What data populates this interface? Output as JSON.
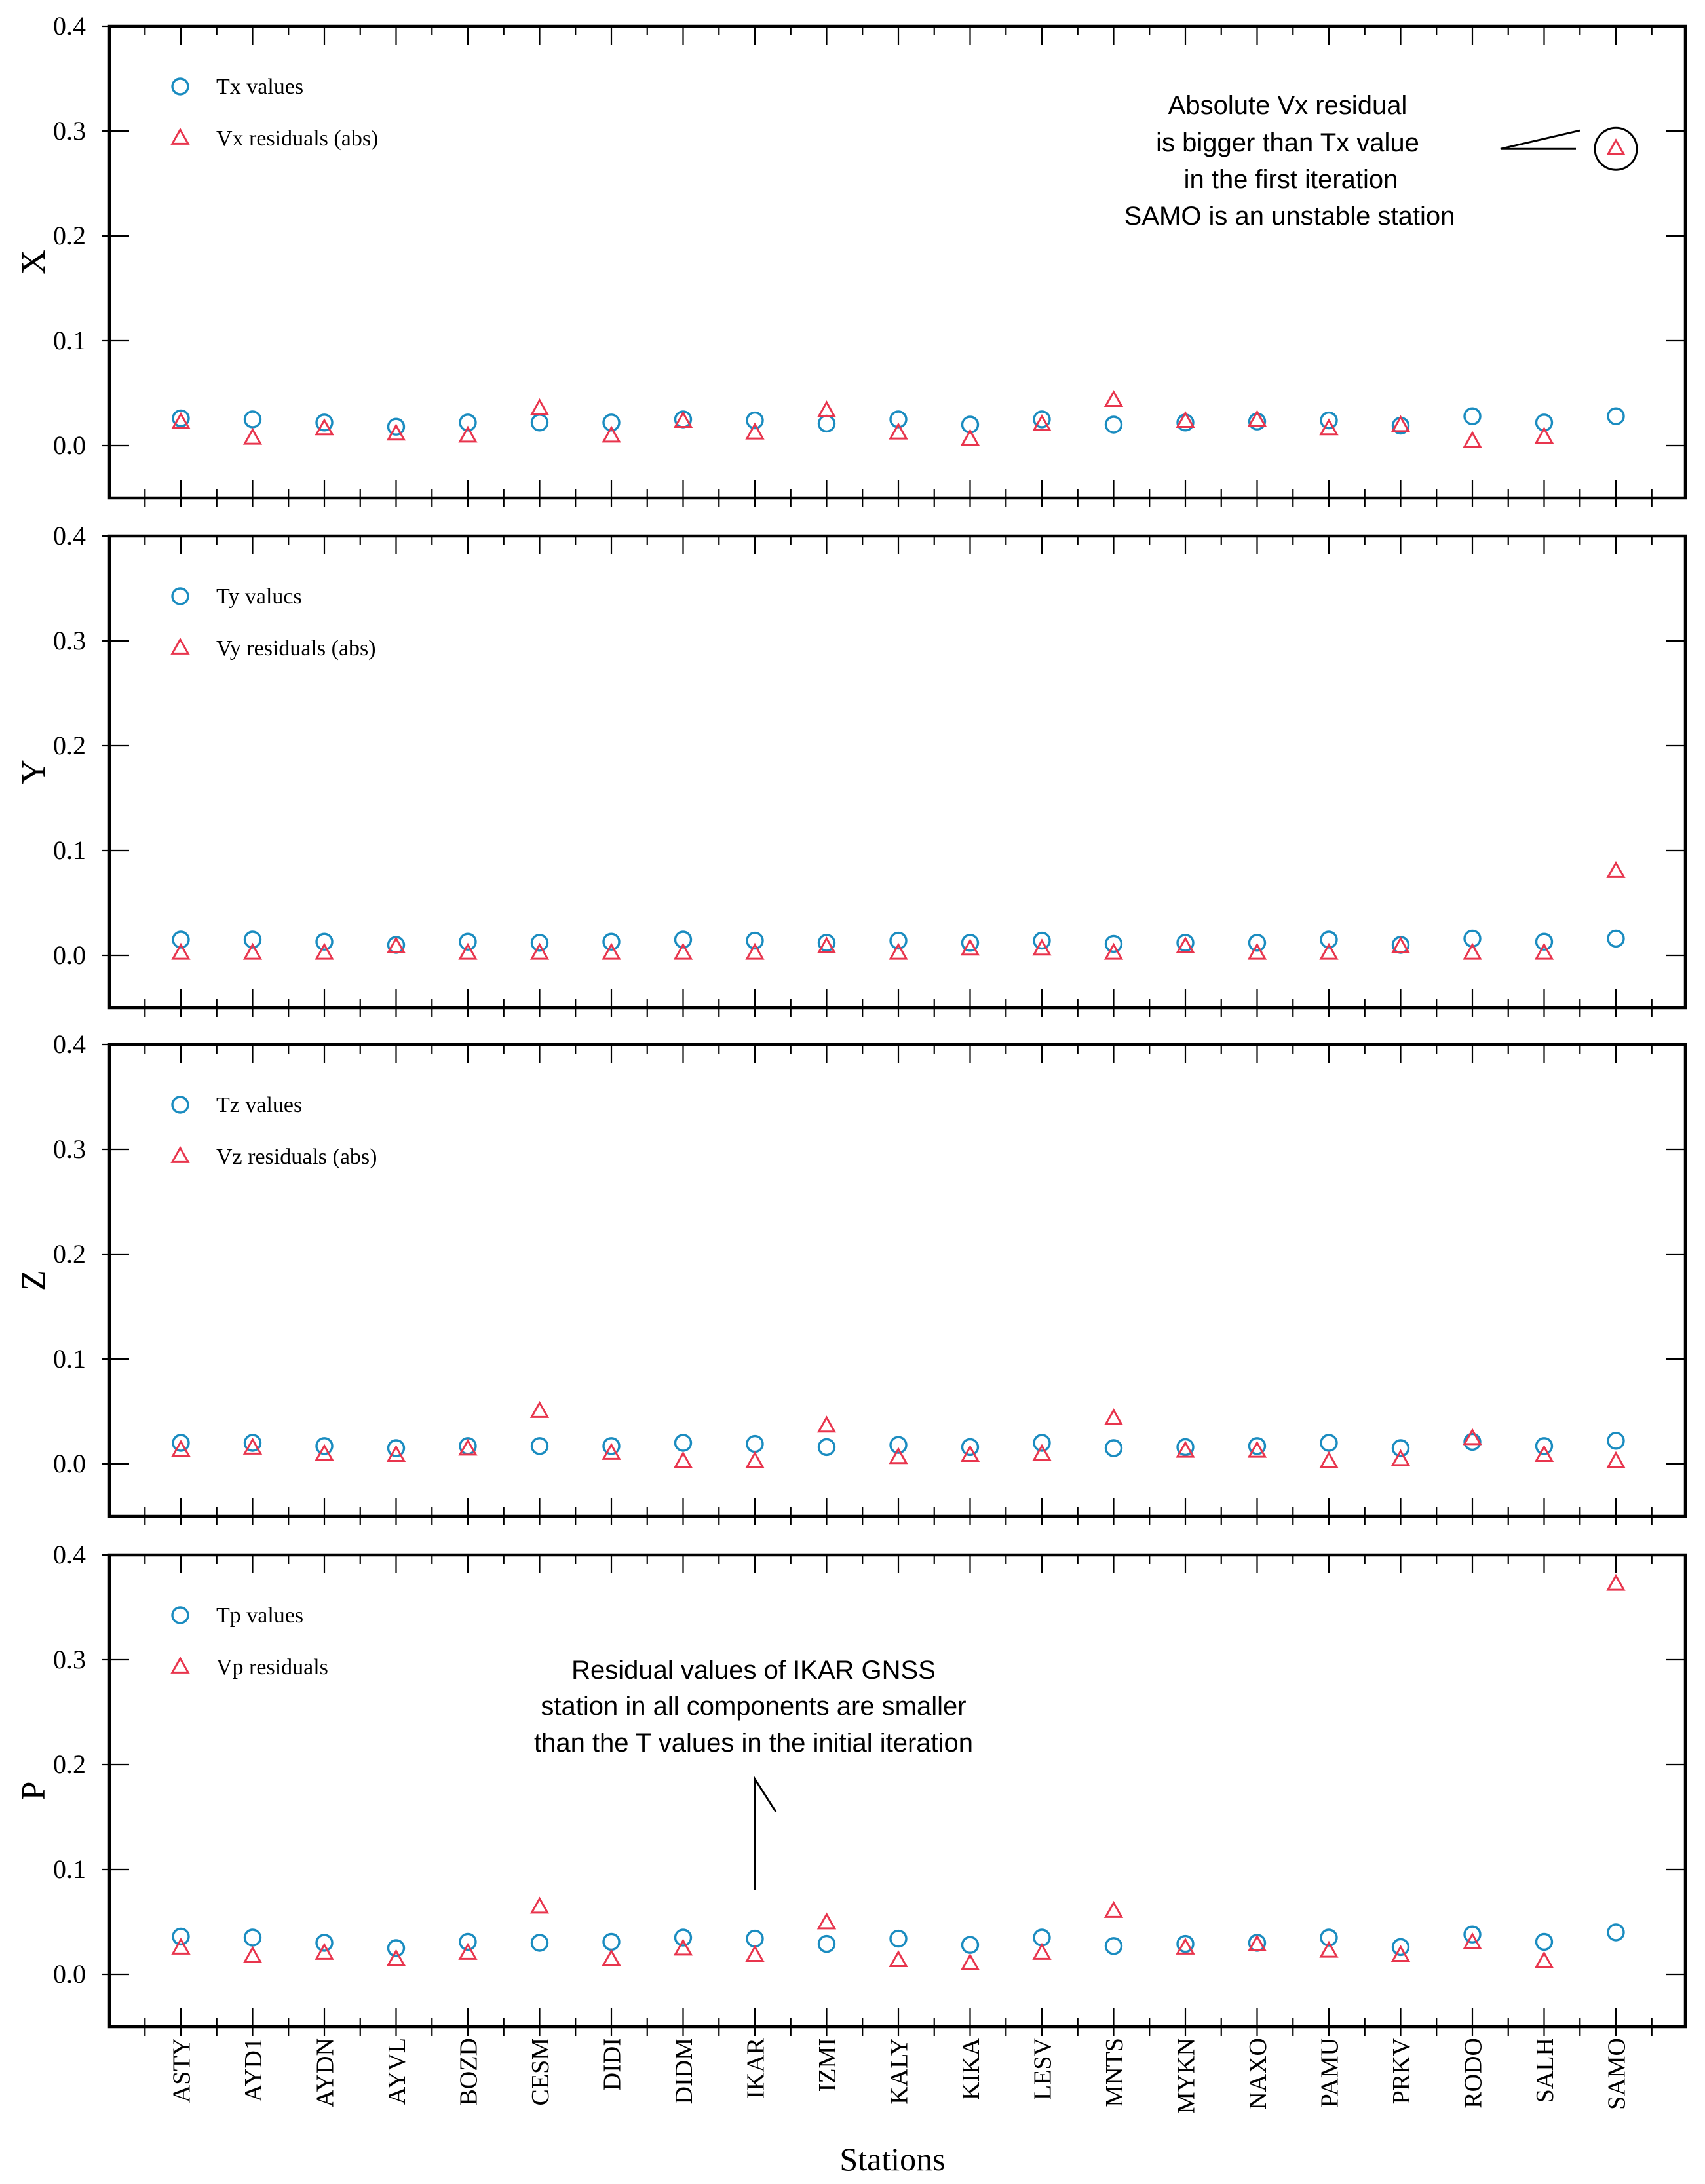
{
  "chart_data": [
    {
      "type": "scatter",
      "panel": "X",
      "ylabel": "X",
      "ylim": [
        -0.05,
        0.4
      ],
      "yticks": [
        "0.0",
        "0.1",
        "0.2",
        "0.3",
        "0.4"
      ],
      "categories": [
        "ASTY",
        "AYD1",
        "AYDN",
        "AYVL",
        "BOZD",
        "CESM",
        "DIDI",
        "DIDM",
        "IKAR",
        "IZMI",
        "KALY",
        "KIKA",
        "LESV",
        "MNTS",
        "MYKN",
        "NAXO",
        "PAMU",
        "PRKV",
        "RODO",
        "SALH",
        "SAMO"
      ],
      "series": [
        {
          "name": "Tx values",
          "marker": "circle",
          "color": "#1a8cc0",
          "values": [
            0.026,
            0.025,
            0.022,
            0.018,
            0.022,
            0.022,
            0.022,
            0.025,
            0.024,
            0.021,
            0.025,
            0.02,
            0.025,
            0.02,
            0.022,
            0.023,
            0.024,
            0.019,
            0.028,
            0.022,
            0.028
          ]
        },
        {
          "name": "Vx residuals (abs)",
          "marker": "triangle",
          "color": "#e8354d",
          "values": [
            0.022,
            0.007,
            0.016,
            0.011,
            0.009,
            0.035,
            0.009,
            0.023,
            0.012,
            0.033,
            0.012,
            0.006,
            0.02,
            0.043,
            0.023,
            0.024,
            0.016,
            0.019,
            0.004,
            0.008,
            0.283
          ]
        }
      ],
      "annotation": {
        "lines": [
          "Absolute Vx residual",
          "is bigger than Tx value",
          "in the first iteration",
          "SAMO is an unstable station"
        ],
        "target": {
          "station": "SAMO",
          "value": 0.283
        }
      }
    },
    {
      "type": "scatter",
      "panel": "Y",
      "ylabel": "Y",
      "ylim": [
        -0.05,
        0.4
      ],
      "yticks": [
        "0.0",
        "0.1",
        "0.2",
        "0.3",
        "0.4"
      ],
      "categories": [
        "ASTY",
        "AYD1",
        "AYDN",
        "AYVL",
        "BOZD",
        "CESM",
        "DIDI",
        "DIDM",
        "IKAR",
        "IZMI",
        "KALY",
        "KIKA",
        "LESV",
        "MNTS",
        "MYKN",
        "NAXO",
        "PAMU",
        "PRKV",
        "RODO",
        "SALH",
        "SAMO"
      ],
      "series": [
        {
          "name": "Ty valucs",
          "marker": "circle",
          "color": "#1a8cc0",
          "values": [
            0.015,
            0.015,
            0.013,
            0.01,
            0.013,
            0.012,
            0.013,
            0.015,
            0.014,
            0.012,
            0.014,
            0.012,
            0.014,
            0.011,
            0.012,
            0.012,
            0.015,
            0.01,
            0.016,
            0.013,
            0.016
          ]
        },
        {
          "name": "Vy residuals (abs)",
          "marker": "triangle",
          "color": "#e8354d",
          "values": [
            0.002,
            0.002,
            0.002,
            0.008,
            0.002,
            0.002,
            0.002,
            0.002,
            0.002,
            0.008,
            0.002,
            0.006,
            0.006,
            0.002,
            0.008,
            0.002,
            0.002,
            0.008,
            0.002,
            0.002,
            0.08
          ]
        }
      ]
    },
    {
      "type": "scatter",
      "panel": "Z",
      "ylabel": "Z",
      "ylim": [
        -0.05,
        0.4
      ],
      "yticks": [
        "0.0",
        "0.1",
        "0.2",
        "0.3",
        "0.4"
      ],
      "categories": [
        "ASTY",
        "AYD1",
        "AYDN",
        "AYVL",
        "BOZD",
        "CESM",
        "DIDI",
        "DIDM",
        "IKAR",
        "IZMI",
        "KALY",
        "KIKA",
        "LESV",
        "MNTS",
        "MYKN",
        "NAXO",
        "PAMU",
        "PRKV",
        "RODO",
        "SALH",
        "SAMO"
      ],
      "series": [
        {
          "name": "Tz values",
          "marker": "circle",
          "color": "#1a8cc0",
          "values": [
            0.02,
            0.02,
            0.017,
            0.015,
            0.017,
            0.017,
            0.017,
            0.02,
            0.019,
            0.016,
            0.018,
            0.016,
            0.02,
            0.015,
            0.016,
            0.017,
            0.02,
            0.015,
            0.021,
            0.017,
            0.022
          ]
        },
        {
          "name": "Vz residuals (abs)",
          "marker": "triangle",
          "color": "#e8354d",
          "values": [
            0.013,
            0.015,
            0.009,
            0.008,
            0.014,
            0.05,
            0.01,
            0.002,
            0.002,
            0.036,
            0.006,
            0.008,
            0.009,
            0.043,
            0.012,
            0.012,
            0.002,
            0.004,
            0.024,
            0.008,
            0.002
          ]
        }
      ]
    },
    {
      "type": "scatter",
      "panel": "P",
      "ylabel": "P",
      "ylim": [
        -0.05,
        0.4
      ],
      "yticks": [
        "0.0",
        "0.1",
        "0.2",
        "0.3",
        "0.4"
      ],
      "categories": [
        "ASTY",
        "AYD1",
        "AYDN",
        "AYVL",
        "BOZD",
        "CESM",
        "DIDI",
        "DIDM",
        "IKAR",
        "IZMI",
        "KALY",
        "KIKA",
        "LESV",
        "MNTS",
        "MYKN",
        "NAXO",
        "PAMU",
        "PRKV",
        "RODO",
        "SALH",
        "SAMO"
      ],
      "series": [
        {
          "name": "Tp values",
          "marker": "circle",
          "color": "#1a8cc0",
          "values": [
            0.036,
            0.035,
            0.03,
            0.025,
            0.031,
            0.03,
            0.031,
            0.035,
            0.034,
            0.029,
            0.034,
            0.028,
            0.035,
            0.027,
            0.029,
            0.03,
            0.035,
            0.026,
            0.038,
            0.031,
            0.04
          ]
        },
        {
          "name": "Vp residuals",
          "marker": "triangle",
          "color": "#e8354d",
          "values": [
            0.025,
            0.017,
            0.02,
            0.014,
            0.02,
            0.064,
            0.014,
            0.024,
            0.018,
            0.049,
            0.013,
            0.01,
            0.02,
            0.06,
            0.025,
            0.028,
            0.022,
            0.018,
            0.03,
            0.012,
            0.372
          ]
        }
      ],
      "annotation": {
        "lines": [
          "Residual values of IKAR GNSS",
          "station in all components are smaller",
          "than the T values in the initial iteration"
        ],
        "target": {
          "station": "IKAR",
          "value": 0.08
        }
      }
    }
  ],
  "xaxis": {
    "title": "Stations"
  }
}
